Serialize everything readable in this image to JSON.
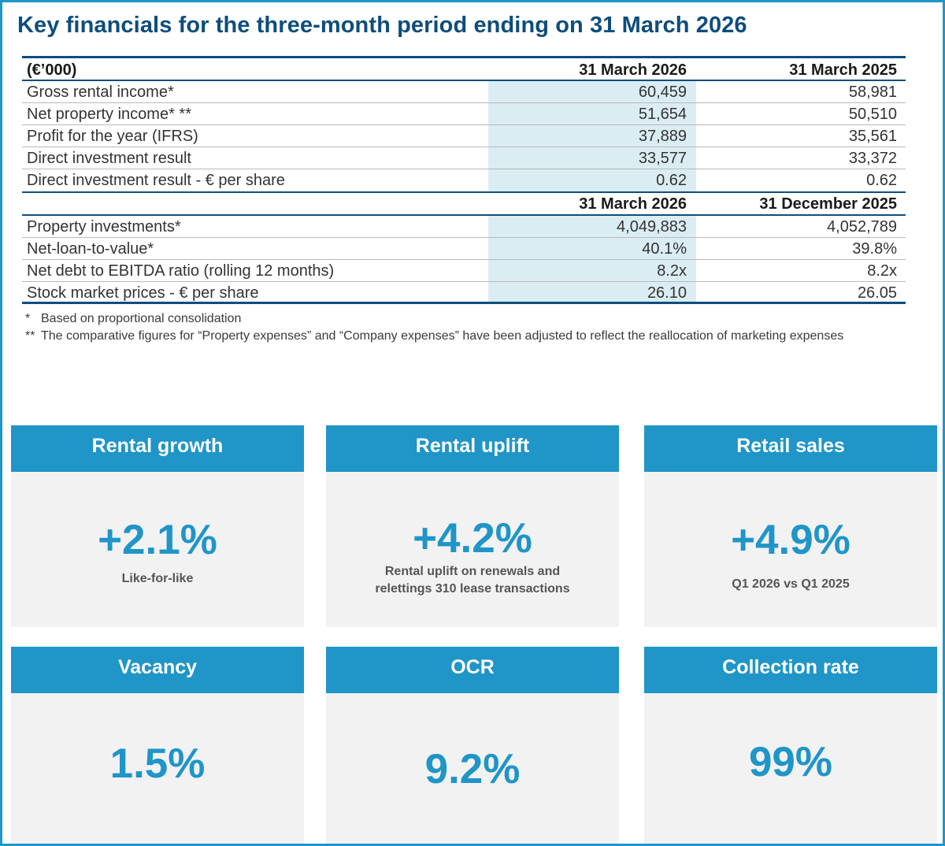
{
  "title": "Key financials for the three-month period ending on 31 March 2026",
  "table": {
    "unit_label": "(€’000)",
    "col_headers_1": [
      "31 March 2026",
      "31 March 2025"
    ],
    "rows_1": [
      {
        "label": "Gross rental income*",
        "v1": "60,459",
        "v2": "58,981"
      },
      {
        "label": "Net property income* **",
        "v1": "51,654",
        "v2": "50,510"
      },
      {
        "label": "Profit for the year (IFRS)",
        "v1": "37,889",
        "v2": "35,561"
      },
      {
        "label": "Direct investment result",
        "v1": "33,577",
        "v2": "33,372"
      },
      {
        "label": "Direct investment result - € per share",
        "v1": "0.62",
        "v2": "0.62"
      }
    ],
    "col_headers_2": [
      "31 March 2026",
      "31 December 2025"
    ],
    "rows_2": [
      {
        "label": "Property investments*",
        "v1": "4,049,883",
        "v2": "4,052,789"
      },
      {
        "label": "Net-loan-to-value*",
        "v1": "40.1%",
        "v2": "39.8%"
      },
      {
        "label": "Net debt to EBITDA ratio (rolling 12 months)",
        "v1": "8.2x",
        "v2": "8.2x"
      },
      {
        "label": "Stock market prices - € per share",
        "v1": "26.10",
        "v2": "26.05"
      }
    ]
  },
  "notes": [
    {
      "mark": "*",
      "text": "Based on proportional consolidation"
    },
    {
      "mark": "**",
      "text": "The comparative figures for “Property expenses” and “Company expenses” have been adjusted to reflect the reallocation of marketing expenses"
    }
  ],
  "kpis": [
    {
      "title": "Rental growth",
      "value": "+2.1%",
      "subtitle": "Like-for-like"
    },
    {
      "title": "Rental uplift",
      "value": "+4.2%",
      "subtitle": "Rental uplift on renewals and relettings 310 lease transactions"
    },
    {
      "title": "Retail sales",
      "value": "+4.9%",
      "subtitle": "Q1 2026 vs Q1 2025"
    },
    {
      "title": "Vacancy",
      "value": "1.5%",
      "subtitle": ""
    },
    {
      "title": "OCR",
      "value": "9.2%",
      "subtitle": ""
    },
    {
      "title": "Collection rate",
      "value": "99%",
      "subtitle": ""
    }
  ],
  "colors": {
    "accent": "#1f95c8",
    "navy": "#0e4d7e",
    "highlight_column": "#daedf3",
    "card_bg": "#f2f2f2"
  }
}
